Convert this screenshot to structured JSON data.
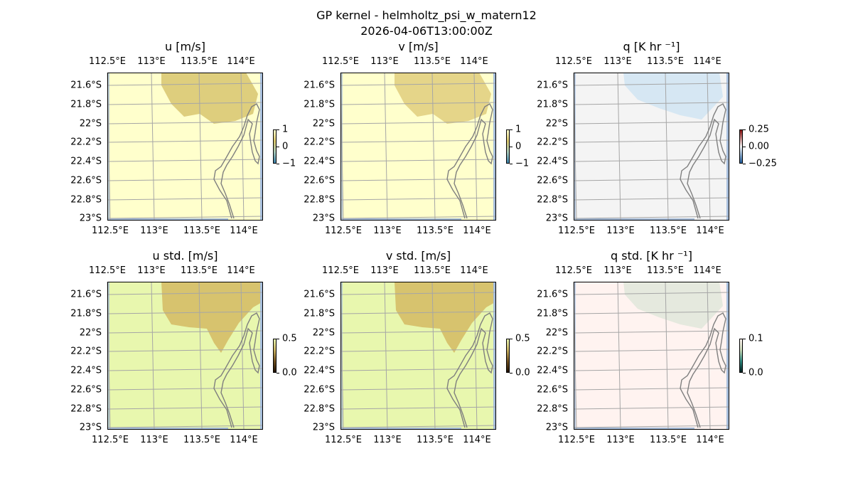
{
  "figure": {
    "title": "GP kernel - helmholtz_psi_w_matern12",
    "subtitle": "2026-04-06T13:00:00Z"
  },
  "panels": [
    {
      "id": "u",
      "title": "u [m/s]",
      "colormap": [
        "#ffffd0",
        "#d9c56a",
        "#a8c8b8",
        "#3a7fa8"
      ],
      "colorbar_ticks": [
        "1",
        "0",
        "−1"
      ],
      "background": "#ffffcc",
      "blob": "#dccb78"
    },
    {
      "id": "v",
      "title": "v [m/s]",
      "colormap": [
        "#ffffd0",
        "#d9c56a",
        "#a8c8b8",
        "#3a7fa8"
      ],
      "colorbar_ticks": [
        "1",
        "0",
        "−1"
      ],
      "background": "#ffffcc",
      "blob": "#e4d385"
    },
    {
      "id": "q",
      "title": "q [K hr ⁻¹]",
      "colormap": [
        "#8a1010",
        "#f5f5f5",
        "#1e5a9a"
      ],
      "colorbar_ticks": [
        "0.25",
        "0.00",
        "−0.25"
      ],
      "background": "#f4f4f4",
      "blob": "#d4e6f2"
    },
    {
      "id": "u_std",
      "title": "u std. [m/s]",
      "colormap": [
        "#e8f5b0",
        "#c8b060",
        "#705020",
        "#201000"
      ],
      "colorbar_ticks": [
        "0.5",
        "0.0"
      ],
      "background": "#e8f7ae",
      "blob": "#d6c06a"
    },
    {
      "id": "v_std",
      "title": "v std. [m/s]",
      "colormap": [
        "#e8f5b0",
        "#c8b060",
        "#705020",
        "#201000"
      ],
      "colorbar_ticks": [
        "0.5",
        "0.0"
      ],
      "background": "#e8f7ae",
      "blob": "#d6c06a"
    },
    {
      "id": "q_std",
      "title": "q std. [K hr ⁻¹]",
      "colormap": [
        "#fff4f0",
        "#c8d8b8",
        "#308a80",
        "#002020"
      ],
      "colorbar_ticks": [
        "0.1",
        "0.0"
      ],
      "background": "#fff3f0",
      "blob": "#e4e8dc"
    }
  ],
  "axes": {
    "lon_ticks": [
      "112.5°E",
      "113°E",
      "113.5°E",
      "114°E"
    ],
    "lat_ticks": [
      "21.6°S",
      "21.8°S",
      "22°S",
      "22.2°S",
      "22.4°S",
      "22.6°S",
      "22.8°S",
      "23°S"
    ]
  },
  "colors": {
    "grid": "#a6a6a6",
    "coastline": "#7f7f7f",
    "ocean": "#a6bddb"
  }
}
